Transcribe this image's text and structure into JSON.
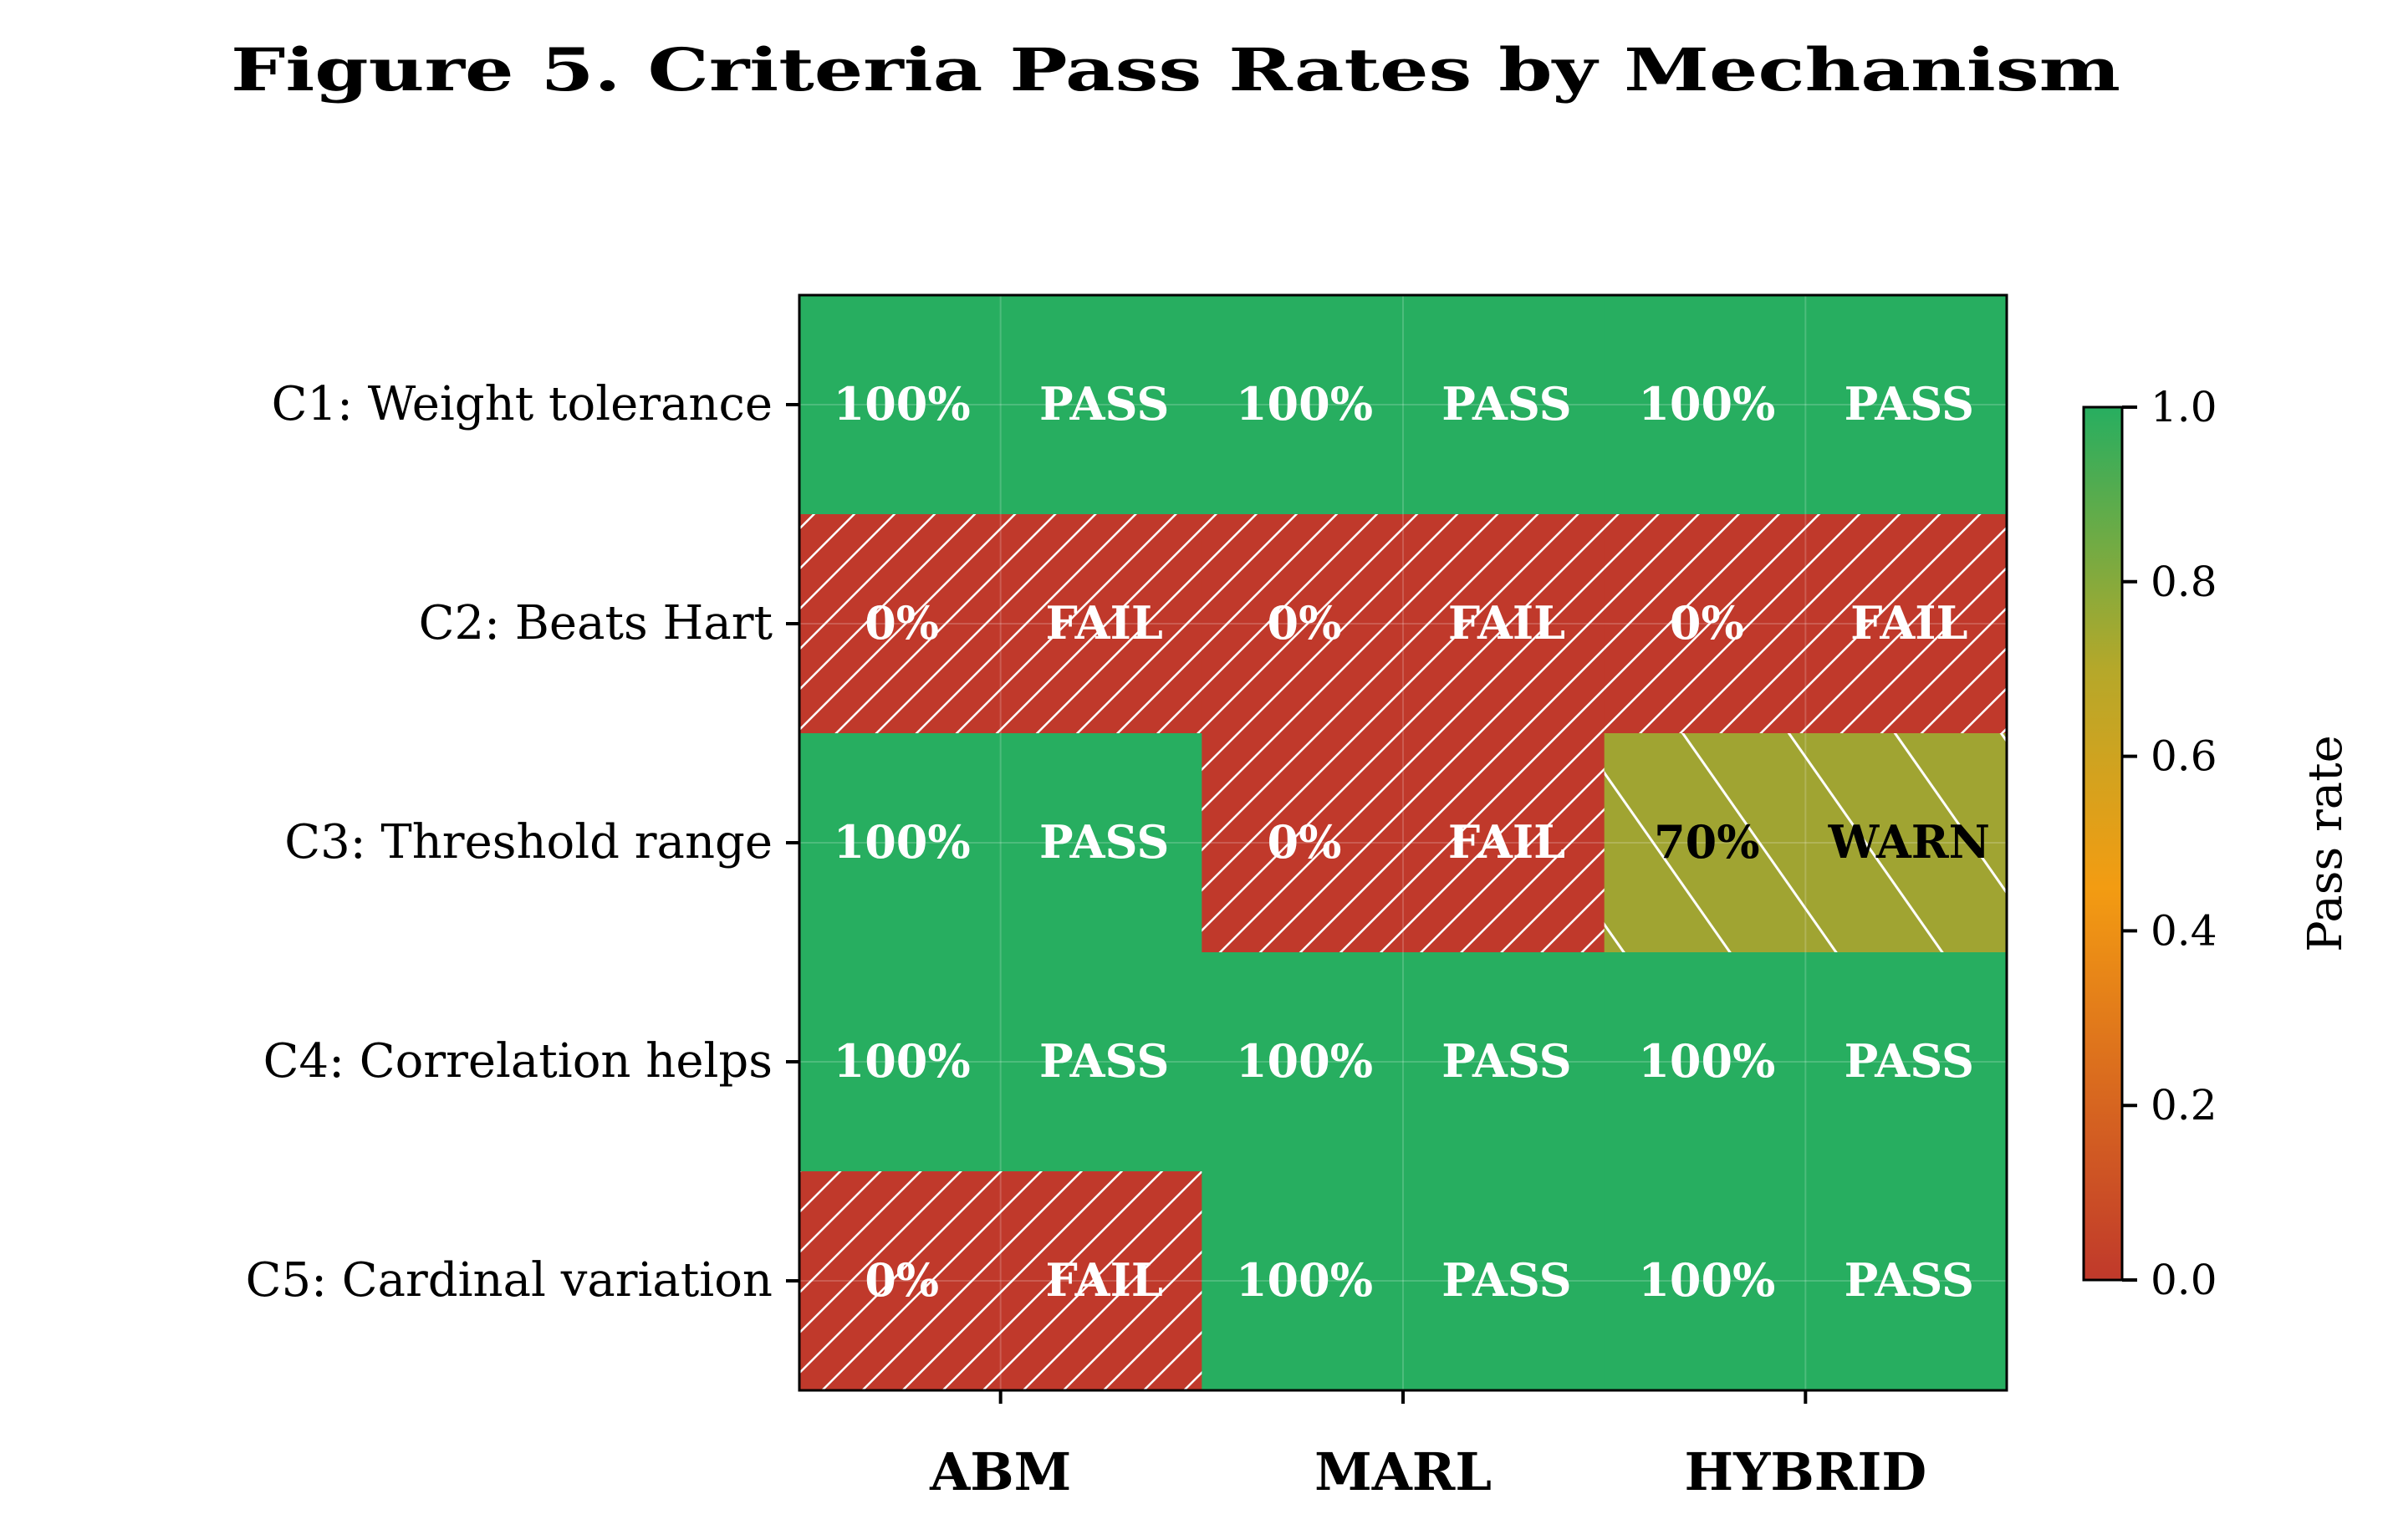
{
  "chart_data": {
    "type": "heatmap",
    "title": "Figure 5. Criteria Pass Rates by Mechanism",
    "columns": [
      "ABM",
      "MARL",
      "HYBRID"
    ],
    "rows": [
      "C1: Weight tolerance",
      "C2: Beats Hart",
      "C3: Threshold range",
      "C4: Correlation helps",
      "C5: Cardinal variation"
    ],
    "values": [
      [
        1.0,
        1.0,
        1.0
      ],
      [
        0.0,
        0.0,
        0.0
      ],
      [
        1.0,
        0.0,
        0.7
      ],
      [
        1.0,
        1.0,
        1.0
      ],
      [
        0.0,
        1.0,
        1.0
      ]
    ],
    "cell_labels": [
      [
        [
          "100%",
          "PASS"
        ],
        [
          "100%",
          "PASS"
        ],
        [
          "100%",
          "PASS"
        ]
      ],
      [
        [
          "0%",
          "FAIL"
        ],
        [
          "0%",
          "FAIL"
        ],
        [
          "0%",
          "FAIL"
        ]
      ],
      [
        [
          "100%",
          "PASS"
        ],
        [
          "0%",
          "FAIL"
        ],
        [
          "70%",
          "WARN"
        ]
      ],
      [
        [
          "100%",
          "PASS"
        ],
        [
          "100%",
          "PASS"
        ],
        [
          "100%",
          "PASS"
        ]
      ],
      [
        [
          "0%",
          "FAIL"
        ],
        [
          "100%",
          "PASS"
        ],
        [
          "100%",
          "PASS"
        ]
      ]
    ],
    "colorbar": {
      "label": "Pass rate",
      "range": [
        0.0,
        1.0
      ],
      "ticks": [
        "0.0",
        "0.2",
        "0.4",
        "0.6",
        "0.8",
        "1.0"
      ],
      "colors": {
        "low": "#c0392b",
        "mid": "#f39c12",
        "high": "#27ae60"
      }
    },
    "status_colors": {
      "PASS": "#27ae60",
      "FAIL": "#c0392b",
      "WARN": "#a0a432"
    },
    "hatch": {
      "FAIL": "forward-diagonal",
      "WARN": "back-diagonal"
    },
    "grid": true
  }
}
